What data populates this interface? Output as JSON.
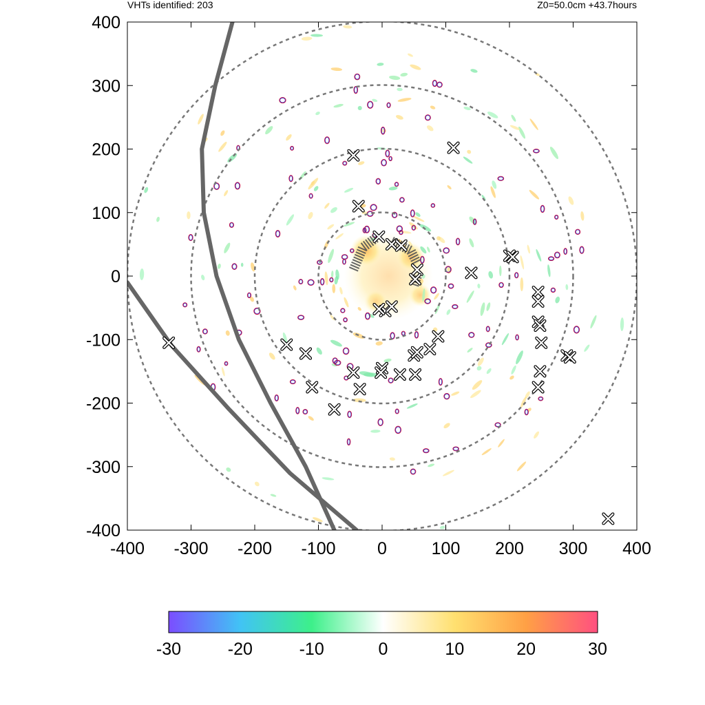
{
  "header": {
    "left_text": "VHTs identified: 203",
    "right_text": "Z0=50.0cm  +43.7hours"
  },
  "chart_data": {
    "type": "heatmap",
    "title": "",
    "xlabel": "",
    "ylabel": "",
    "xlim": [
      -400,
      400
    ],
    "ylim": [
      -400,
      400
    ],
    "x_ticks": [
      -400,
      -300,
      -200,
      -100,
      0,
      100,
      200,
      300,
      400
    ],
    "y_ticks": [
      -400,
      -300,
      -200,
      -100,
      0,
      100,
      200,
      300,
      400
    ],
    "grid": false,
    "range_rings_radii": [
      100,
      200,
      300,
      400
    ],
    "colorbar": {
      "range": [
        -30,
        30
      ],
      "ticks": [
        -30,
        -20,
        -10,
        0,
        10,
        20,
        30
      ],
      "colors": [
        "#7b4dff",
        "#41c3f5",
        "#3df08a",
        "#ffffff",
        "#ffe070",
        "#ffa045",
        "#ff5080"
      ]
    },
    "tracks": [
      {
        "points": [
          [
            -235,
            400
          ],
          [
            -262,
            300
          ],
          [
            -283,
            200
          ],
          [
            -280,
            100
          ],
          [
            -260,
            0
          ],
          [
            -225,
            -100
          ],
          [
            -175,
            -200
          ],
          [
            -120,
            -300
          ],
          [
            -75,
            -400
          ]
        ]
      },
      {
        "points": [
          [
            -400,
            -10
          ],
          [
            -330,
            -110
          ],
          [
            -240,
            -210
          ],
          [
            -145,
            -310
          ],
          [
            -40,
            -400
          ]
        ]
      }
    ],
    "vht_markers": [
      [
        -45,
        190
      ],
      [
        112,
        202
      ],
      [
        -37,
        110
      ],
      [
        -5,
        62
      ],
      [
        15,
        50
      ],
      [
        30,
        48
      ],
      [
        55,
        10
      ],
      [
        52,
        -5
      ],
      [
        140,
        5
      ],
      [
        200,
        32
      ],
      [
        205,
        30
      ],
      [
        5,
        -55
      ],
      [
        -5,
        -52
      ],
      [
        15,
        -48
      ],
      [
        -150,
        -108
      ],
      [
        -120,
        -122
      ],
      [
        -110,
        -175
      ],
      [
        -75,
        -210
      ],
      [
        -35,
        -178
      ],
      [
        -45,
        -152
      ],
      [
        0,
        -145
      ],
      [
        -2,
        -152
      ],
      [
        28,
        -155
      ],
      [
        52,
        -155
      ],
      [
        50,
        -125
      ],
      [
        55,
        -120
      ],
      [
        75,
        -115
      ],
      [
        88,
        -95
      ],
      [
        245,
        -25
      ],
      [
        245,
        -40
      ],
      [
        245,
        -72
      ],
      [
        248,
        -78
      ],
      [
        250,
        -105
      ],
      [
        290,
        -125
      ],
      [
        295,
        -128
      ],
      [
        248,
        -150
      ],
      [
        245,
        -175
      ],
      [
        -335,
        -105
      ],
      [
        355,
        -382
      ]
    ],
    "warm_core_blobs": [
      {
        "cx": 10,
        "cy": 0,
        "r": 70,
        "value": 12
      },
      {
        "cx": -25,
        "cy": 40,
        "r": 25,
        "value": 22
      },
      {
        "cx": 45,
        "cy": 30,
        "r": 22,
        "value": 20
      },
      {
        "cx": 60,
        "cy": -30,
        "r": 18,
        "value": 18
      },
      {
        "cx": -10,
        "cy": -40,
        "r": 18,
        "value": 15
      }
    ]
  }
}
